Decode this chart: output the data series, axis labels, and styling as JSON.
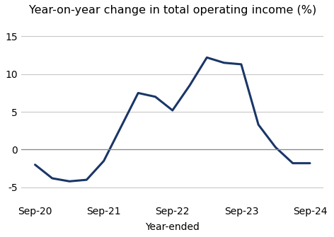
{
  "x_labels": [
    "Sep-20",
    "Sep-21",
    "Sep-22",
    "Sep-23",
    "Sep-24"
  ],
  "x_tick_positions": [
    0,
    4,
    8,
    12,
    16
  ],
  "x_data": [
    0,
    1,
    2,
    3,
    4,
    5,
    6,
    7,
    8,
    9,
    10,
    11,
    12,
    13,
    14,
    15,
    16
  ],
  "y_data": [
    -2.0,
    -3.8,
    -4.2,
    -4.0,
    -1.5,
    3.0,
    7.5,
    7.0,
    5.2,
    8.5,
    12.2,
    11.5,
    11.3,
    3.3,
    0.3,
    -1.8,
    -1.8
  ],
  "line_color": "#1a3668",
  "line_width": 2.2,
  "title": "Year-on-year change in total operating income (%)",
  "xlabel": "Year-ended",
  "ylim": [
    -7,
    17
  ],
  "yticks": [
    -5,
    0,
    5,
    10,
    15
  ],
  "grid_color": "#c8c8c8",
  "zero_line_color": "#888888",
  "background_color": "#ffffff",
  "title_fontsize": 11.5,
  "label_fontsize": 10,
  "tick_fontsize": 10
}
